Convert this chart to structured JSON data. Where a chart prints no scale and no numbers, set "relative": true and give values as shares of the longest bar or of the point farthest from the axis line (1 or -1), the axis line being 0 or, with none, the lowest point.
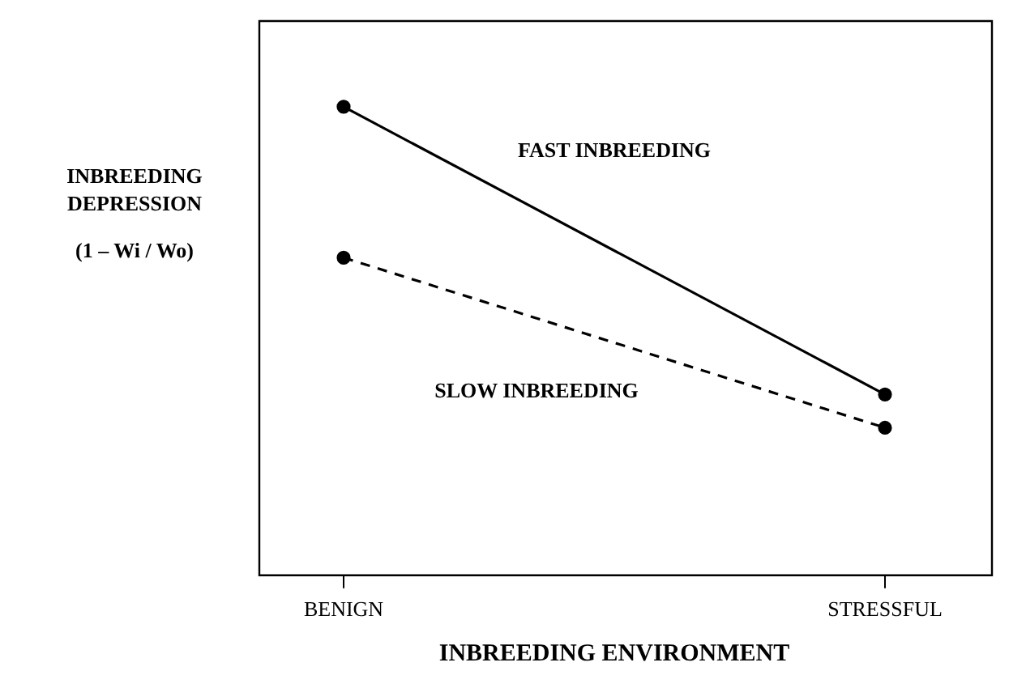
{
  "chart_data": {
    "type": "line",
    "relative": true,
    "categories": [
      "BENIGN",
      "STRESSFUL"
    ],
    "series": [
      {
        "name": "FAST INBREEDING",
        "color": "#000000",
        "values": [
          1,
          0.386
        ],
        "line_style": "solid"
      },
      {
        "name": "SLOW INBREEDING",
        "color": "#000000",
        "values": [
          0.678,
          0.315
        ],
        "line_style": "dashed"
      }
    ],
    "xlabel": "INBREEDING ENVIRONMENT",
    "ylabel": "INBREEDING DEPRESSION (1 – Wi / Wo)",
    "marker": "circle",
    "grid": false,
    "legend": false
  }
}
